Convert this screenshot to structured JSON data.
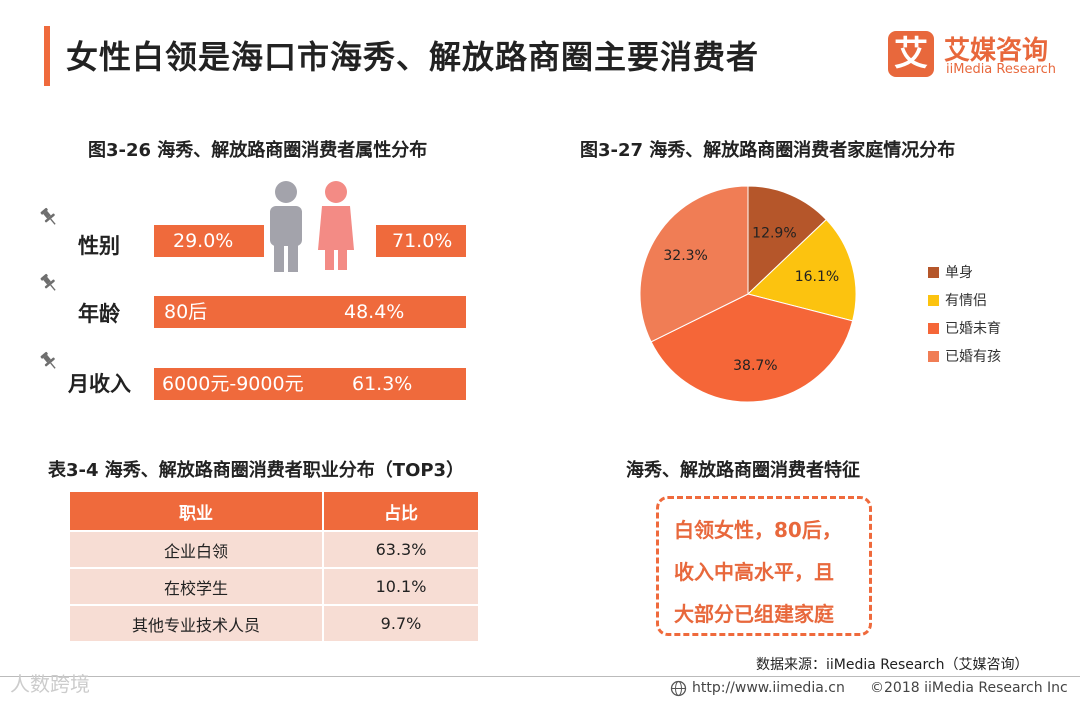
{
  "header": {
    "title": "女性白领是海口市海秀、解放路商圈主要消费者",
    "logo_mark": "艾",
    "logo_cn": "艾媒咨询",
    "logo_en": "iiMedia Research"
  },
  "attributes": {
    "title": "图3-26 海秀、解放路商圈消费者属性分布",
    "gender": {
      "label": "性别",
      "male_value": "29.0%",
      "female_value": "71.0%"
    },
    "age": {
      "label": "年龄",
      "category": "80后",
      "value": "48.4%"
    },
    "income": {
      "label": "月收入",
      "category": "6000元-9000元",
      "value": "61.3%"
    },
    "colors": {
      "bar": "#ef6a3c",
      "male_icon": "#a3a3ab",
      "female_icon": "#f38b85"
    }
  },
  "chart_data": {
    "type": "pie",
    "title": "图3-27 海秀、解放路商圈消费者家庭情况分布",
    "categories": [
      "单身",
      "有情侣",
      "已婚未育",
      "已婚有孩"
    ],
    "values": [
      12.9,
      16.1,
      38.7,
      32.3
    ],
    "value_labels": [
      "12.9%",
      "16.1%",
      "38.7%",
      "32.3%"
    ],
    "colors": [
      "#b5562a",
      "#fcc30f",
      "#f56638",
      "#f07d55"
    ],
    "legend_position": "right"
  },
  "table": {
    "title": "表3-4 海秀、解放路商圈消费者职业分布（TOP3）",
    "headers": [
      "职业",
      "占比"
    ],
    "rows": [
      [
        "企业白领",
        "63.3%"
      ],
      [
        "在校学生",
        "10.1%"
      ],
      [
        "其他专业技术人员",
        "9.7%"
      ]
    ]
  },
  "feature": {
    "title": "海秀、解放路商圈消费者特征",
    "lines": [
      "白领女性，80后，",
      "收入中高水平，且",
      "大部分已组建家庭"
    ]
  },
  "footer": {
    "source": "数据来源：iiMedia Research（艾媒咨询）",
    "url": "http://www.iimedia.cn",
    "copyright": "©2018  iiMedia Research  Inc",
    "watermark": "人数跨境"
  }
}
